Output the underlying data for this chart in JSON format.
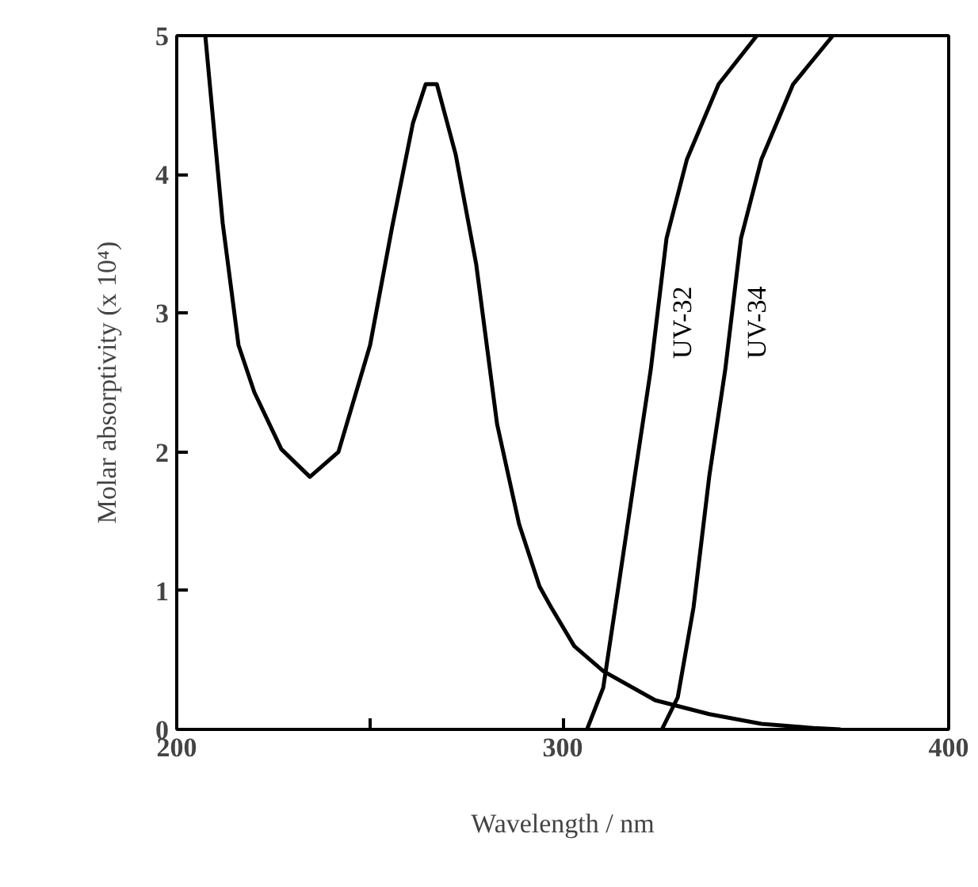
{
  "chart_data": {
    "type": "line",
    "xlabel": "Wavelength / nm",
    "ylabel": "Molar absorptivity (x 10⁴)",
    "xlim": [
      200,
      400
    ],
    "ylim": [
      0,
      5
    ],
    "xticks": [
      200,
      {
        "value": 250,
        "label": null
      },
      300,
      400
    ],
    "yticks": [
      0,
      1,
      2,
      3,
      4,
      5
    ],
    "grid": false,
    "legend": false,
    "marker": "none",
    "line_style": "solid",
    "series": [
      {
        "color": "#000000",
        "x": [
          207.4,
          211.9,
          216,
          220.1,
          227.1,
          234.5,
          241.9,
          250.1,
          255.8,
          261.2,
          264.5,
          267.4,
          272.3,
          277.6,
          283,
          288.7,
          294,
          297,
          303,
          310.5,
          324,
          338,
          351.5,
          365,
          372
        ],
        "values": [
          5.0,
          3.65,
          2.77,
          2.43,
          2.02,
          1.82,
          2.0,
          2.77,
          3.62,
          4.37,
          4.65,
          4.65,
          4.14,
          3.35,
          2.2,
          1.48,
          1.03,
          0.88,
          0.6,
          0.42,
          0.21,
          0.11,
          0.04,
          0.01,
          0.0
        ]
      },
      {
        "name": "UV-32",
        "color": "#000000",
        "x": [
          306.3,
          310.5,
          314.6,
          318.7,
          322.8,
          326.9,
          332.2,
          340.4,
          350.3
        ],
        "values": [
          0.0,
          0.3,
          1.06,
          1.83,
          2.59,
          3.54,
          4.11,
          4.65,
          5.0
        ]
      },
      {
        "name": "UV-34",
        "color": "#000000",
        "x": [
          325.7,
          329.8,
          333.9,
          338,
          342.1,
          346.2,
          351.5,
          359.7,
          370
        ],
        "values": [
          0.0,
          0.23,
          0.88,
          1.83,
          2.59,
          3.54,
          4.11,
          4.65,
          5.0
        ]
      }
    ]
  }
}
